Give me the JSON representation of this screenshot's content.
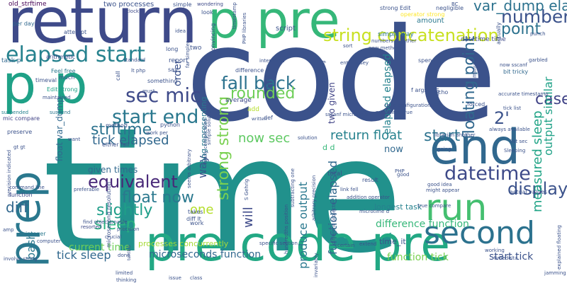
{
  "words": [
    {
      "text": "time",
      "color": "#21918c"
    },
    {
      "text": "code",
      "color": "#3b528b"
    },
    {
      "text": "return",
      "color": "#3e4a89"
    },
    {
      "text": "p pre",
      "color": "#35b779"
    },
    {
      "text": "p p",
      "color": "#1fa187"
    },
    {
      "text": "pre code pre",
      "color": "#22a884"
    },
    {
      "text": "end",
      "color": "#31688e"
    },
    {
      "text": "second",
      "color": "#2c728e"
    },
    {
      "text": "run",
      "color": "#44bf70"
    },
    {
      "text": "prep",
      "color": "#2a788e"
    },
    {
      "text": "elapsed start",
      "color": "#26828e"
    },
    {
      "text": "start end",
      "color": "#2a788e"
    },
    {
      "text": "sec mic",
      "color": "#3e4a89"
    },
    {
      "text": "fall back",
      "color": "#2c728e"
    },
    {
      "text": "rounded",
      "color": "#6ece58"
    },
    {
      "text": "number",
      "color": "#3b528b"
    },
    {
      "text": "point",
      "color": "#2c728e"
    },
    {
      "text": "string concatenation",
      "color": "#c8e020"
    },
    {
      "text": "var_dump elapsed",
      "color": "#2c728e"
    },
    {
      "text": "floating point",
      "color": "#31688e"
    },
    {
      "text": "case",
      "color": "#414487"
    },
    {
      "text": "2'",
      "color": "#3b528b"
    },
    {
      "text": "datetime",
      "color": "#3e4a89"
    },
    {
      "text": "display",
      "color": "#3b528b"
    },
    {
      "text": "return float",
      "color": "#26828e"
    },
    {
      "text": "start",
      "color": "#2c728e"
    },
    {
      "text": "equivalent",
      "color": "#482878"
    },
    {
      "text": "float now",
      "color": "#2a788e"
    },
    {
      "text": "slightly",
      "color": "#1f9e89"
    },
    {
      "text": "strftime",
      "color": "#2c728e"
    },
    {
      "text": "tick elapsed",
      "color": "#31688e"
    },
    {
      "text": "now sec",
      "color": "#5ec962"
    },
    {
      "text": "strong strong",
      "color": "#7ad151"
    },
    {
      "text": "function elapsed",
      "color": "#31688e"
    },
    {
      "text": "output similar",
      "color": "#1fa187"
    },
    {
      "text": "measured sleep",
      "color": "#20a486"
    },
    {
      "text": "diff",
      "color": "#31688e"
    },
    {
      "text": "one",
      "color": "#b5de2b"
    },
    {
      "text": "sleep",
      "color": "#2ab07f"
    },
    {
      "text": "bash",
      "color": "#2a788e"
    },
    {
      "text": "tick sleep",
      "color": "#31688e"
    },
    {
      "text": "current time",
      "color": "#6ece58"
    },
    {
      "text": "will",
      "color": "#3e4a89"
    },
    {
      "text": "produce output",
      "color": "#2a788e"
    },
    {
      "text": "difference function",
      "color": "#35b779"
    },
    {
      "text": "microseconds function",
      "color": "#31688e"
    },
    {
      "text": "function tick",
      "color": "#7ad151"
    },
    {
      "text": "start tick",
      "color": "#3b528b"
    },
    {
      "text": "elapsed elapsed",
      "color": "#26828e"
    },
    {
      "text": "way",
      "color": "#3b528b"
    },
    {
      "text": "order",
      "color": "#3b528b"
    },
    {
      "text": "float var_dump",
      "color": "#31688e"
    },
    {
      "text": "given times",
      "color": "#31688e"
    },
    {
      "text": "two given",
      "color": "#414487"
    },
    {
      "text": "strong representing",
      "color": "#2a788e"
    },
    {
      "text": "processes concurrently",
      "color": "#a5db36"
    },
    {
      "text": "time_it",
      "color": "#3b528b"
    },
    {
      "text": "longest task",
      "color": "#26828e"
    },
    {
      "text": "d d",
      "color": "#35b779"
    },
    {
      "text": "now",
      "color": "#31688e"
    },
    {
      "text": "two processes",
      "color": "#3b528b"
    },
    {
      "text": "old_strftime",
      "color": "#440154"
    },
    {
      "text": "per day",
      "color": "#31688e"
    },
    {
      "text": "task p",
      "color": "#31688e"
    },
    {
      "text": "arithmetic",
      "color": "#3e4a89"
    },
    {
      "text": "Feel free",
      "color": "#2a788e"
    },
    {
      "text": "timeval",
      "color": "#3b528b"
    },
    {
      "text": "Edit strong",
      "color": "#1fa187"
    },
    {
      "text": "mic compare",
      "color": "#414487"
    },
    {
      "text": "preserve",
      "color": "#3b528b"
    },
    {
      "text": "suspended",
      "color": "#26828e"
    },
    {
      "text": "suspend",
      "color": "#2a788e"
    },
    {
      "text": "maintained",
      "color": "#3b528b"
    },
    {
      "text": "precision indicated",
      "color": "#3b528b"
    },
    {
      "text": "command line",
      "color": "#3b528b"
    },
    {
      "text": "function",
      "color": "#3e4a89"
    },
    {
      "text": "integer",
      "color": "#2a788e"
    },
    {
      "text": "computer",
      "color": "#3b528b"
    },
    {
      "text": "involve string",
      "color": "#3b528b"
    },
    {
      "text": "microsecond resolution",
      "color": "#3b528b"
    },
    {
      "text": "resorted",
      "color": "#3e4a89"
    },
    {
      "text": "find objectionable",
      "color": "#3b528b"
    },
    {
      "text": "precision",
      "color": "#3b528b"
    },
    {
      "text": "crucial",
      "color": "#3b528b"
    },
    {
      "text": "clock",
      "color": "#3e4a89"
    },
    {
      "text": "simple",
      "color": "#3b528b"
    },
    {
      "text": "wondering",
      "color": "#3e4a89"
    },
    {
      "text": "strong Edit",
      "color": "#3b528b"
    },
    {
      "text": "negligible",
      "color": "#3b528b"
    },
    {
      "text": "operator strong",
      "color": "#fde725"
    },
    {
      "text": "amount",
      "color": "#2a788e"
    },
    {
      "text": "simple way",
      "color": "#2a788e"
    },
    {
      "text": "numbers together",
      "color": "#3b528b"
    },
    {
      "text": "new method",
      "color": "#3b528b"
    },
    {
      "text": "datetime time",
      "color": "#3e4a89"
    },
    {
      "text": "now sscanf",
      "color": "#3b528b"
    },
    {
      "text": "bit tricky",
      "color": "#31688e"
    },
    {
      "text": "accurate timestamp",
      "color": "#3b528b"
    },
    {
      "text": "tick list",
      "color": "#3b528b"
    },
    {
      "text": "always available",
      "color": "#3b528b"
    },
    {
      "text": "list sec",
      "color": "#3b528b"
    },
    {
      "text": "Sleeping",
      "color": "#3b528b"
    },
    {
      "text": "sscanf microtime",
      "color": "#3b528b"
    },
    {
      "text": "microtime true",
      "color": "#3b528b"
    },
    {
      "text": "average",
      "color": "#3e4a89"
    },
    {
      "text": "difference",
      "color": "#3b528b"
    },
    {
      "text": "add",
      "color": "#b5de2b"
    },
    {
      "text": "def",
      "color": "#3b528b"
    },
    {
      "text": "total",
      "color": "#3b528b"
    },
    {
      "text": "result",
      "color": "#3b528b"
    },
    {
      "text": "addition operator",
      "color": "#3b528b"
    },
    {
      "text": "microtime d",
      "color": "#3b528b"
    },
    {
      "text": "actual values",
      "color": "#3b528b"
    },
    {
      "text": "might appear",
      "color": "#3b528b"
    },
    {
      "text": "good idea",
      "color": "#3b528b"
    },
    {
      "text": "extend",
      "color": "#3b528b"
    },
    {
      "text": "specific section",
      "color": "#3b528b"
    },
    {
      "text": "hundredths position",
      "color": "#3b528b"
    },
    {
      "text": "either fall",
      "color": "#3b528b"
    },
    {
      "text": "diff lt",
      "color": "#3b528b"
    },
    {
      "text": "takes",
      "color": "#3b528b"
    },
    {
      "text": "work",
      "color": "#3b528b"
    },
    {
      "text": "report",
      "color": "#3b528b"
    },
    {
      "text": "standard",
      "color": "#3b528b"
    },
    {
      "text": "lt php",
      "color": "#3b528b"
    },
    {
      "text": "much",
      "color": "#3b528b"
    },
    {
      "text": "python",
      "color": "#3b528b"
    },
    {
      "text": "method",
      "color": "#3b528b"
    },
    {
      "text": "call",
      "color": "#3b528b"
    },
    {
      "text": "long",
      "color": "#3b528b"
    },
    {
      "text": "idea",
      "color": "#3b528b"
    },
    {
      "text": "say",
      "color": "#3b528b"
    },
    {
      "text": "rather",
      "color": "#3b528b"
    },
    {
      "text": "script",
      "color": "#3b528b"
    },
    {
      "text": "sort",
      "color": "#3b528b"
    },
    {
      "text": "spend",
      "color": "#3b528b"
    },
    {
      "text": "echo",
      "color": "#3b528b"
    },
    {
      "text": "f args",
      "color": "#3b528b"
    },
    {
      "text": "thought",
      "color": "#3b528b"
    },
    {
      "text": "forced",
      "color": "#3b528b"
    },
    {
      "text": "garbled",
      "color": "#3b528b"
    },
    {
      "text": "punch",
      "color": "#3b528b"
    },
    {
      "text": "actually",
      "color": "#3b528b"
    },
    {
      "text": "BC",
      "color": "#3b528b"
    },
    {
      "text": "look",
      "color": "#3b528b"
    },
    {
      "text": "casting",
      "color": "#3b528b"
    },
    {
      "text": "solution",
      "color": "#3b528b"
    },
    {
      "text": "written",
      "color": "#3b528b"
    },
    {
      "text": "PHP",
      "color": "#3b528b"
    },
    {
      "text": "good",
      "color": "#3b528b"
    },
    {
      "text": "going",
      "color": "#3b528b"
    },
    {
      "text": "true compare",
      "color": "#3b528b"
    },
    {
      "text": "working",
      "color": "#3b528b"
    },
    {
      "text": "timedelta",
      "color": "#3b528b"
    },
    {
      "text": "explained floating",
      "color": "#3b528b"
    },
    {
      "text": "jamming",
      "color": "#3b528b"
    },
    {
      "text": "issue",
      "color": "#3b528b"
    },
    {
      "text": "class",
      "color": "#3b528b"
    },
    {
      "text": "limited",
      "color": "#3b528b"
    },
    {
      "text": "thinking",
      "color": "#3b528b"
    },
    {
      "text": "done",
      "color": "#3b528b"
    },
    {
      "text": "terrible",
      "color": "#3b528b"
    },
    {
      "text": "want",
      "color": "#3b528b"
    },
    {
      "text": "preferable",
      "color": "#3b528b"
    },
    {
      "text": "amp",
      "color": "#3b528b"
    },
    {
      "text": "gt gt",
      "color": "#3b528b"
    },
    {
      "text": "invariably",
      "color": "#3b528b"
    },
    {
      "text": "certain",
      "color": "#3b528b"
    },
    {
      "text": "subtracting one",
      "color": "#3b528b"
    },
    {
      "text": "seems arbitrary",
      "color": "#3b528b"
    },
    {
      "text": "S Gehrig",
      "color": "#3b528b"
    },
    {
      "text": "link fell",
      "color": "#3b528b"
    },
    {
      "text": "librarian another",
      "color": "#3b528b"
    },
    {
      "text": "simple solution",
      "color": "#3b528b"
    },
    {
      "text": "work per",
      "color": "#3b528b"
    },
    {
      "text": "must",
      "color": "#3b528b"
    },
    {
      "text": "far simpler",
      "color": "#3b528b"
    },
    {
      "text": "two",
      "color": "#3b528b"
    },
    {
      "text": "interested",
      "color": "#3b528b"
    },
    {
      "text": "enterprisey",
      "color": "#3b528b"
    },
    {
      "text": "code configuration",
      "color": "#3b528b"
    },
    {
      "text": "exists something",
      "color": "#3b528b"
    },
    {
      "text": "really complicated",
      "color": "#3b528b"
    },
    {
      "text": "minutes",
      "color": "#3b528b"
    },
    {
      "text": "something",
      "color": "#3b528b"
    },
    {
      "text": "convincing",
      "color": "#3b528b"
    },
    {
      "text": "timestamp",
      "color": "#3b528b"
    },
    {
      "text": "PHP libraries",
      "color": "#3b528b"
    },
    {
      "text": "attempt",
      "color": "#3b528b"
    },
    {
      "text": "arbitrary precision",
      "color": "#3b528b"
    },
    {
      "text": "different projects",
      "color": "#3b528b"
    }
  ]
}
